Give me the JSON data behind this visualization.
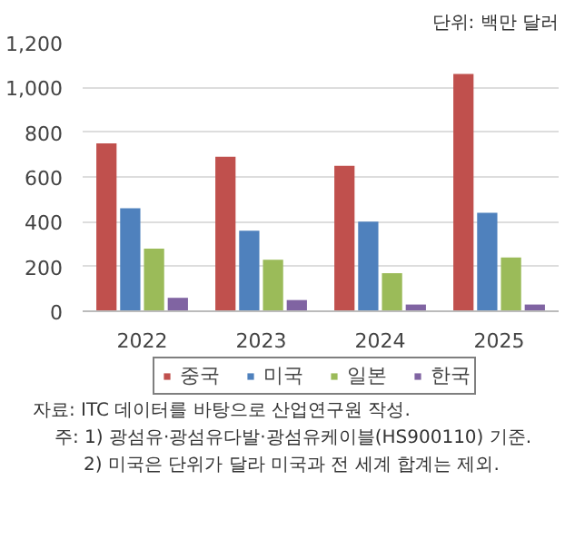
{
  "chart_data": {
    "type": "bar",
    "subtitle": "단위: 백만 달러",
    "categories": [
      "2022",
      "2023",
      "2024",
      "2025"
    ],
    "series": [
      {
        "name": "중국",
        "color": "#c0504d",
        "values": [
          750,
          690,
          650,
          1060
        ]
      },
      {
        "name": "미국",
        "color": "#4f81bd",
        "values": [
          460,
          360,
          400,
          440
        ]
      },
      {
        "name": "일본",
        "color": "#9bbb59",
        "values": [
          280,
          230,
          170,
          240
        ]
      },
      {
        "name": "한국",
        "color": "#8064a2",
        "values": [
          60,
          50,
          30,
          30
        ]
      }
    ],
    "ylim": [
      0,
      1200
    ],
    "yticks": [
      0,
      {
        "value": 200,
        "label": "200"
      },
      {
        "value": 400,
        "label": "400"
      },
      {
        "value": 600,
        "label": "600"
      },
      {
        "value": 800,
        "label": "800"
      },
      {
        "value": 1000,
        "label": "1,000"
      },
      {
        "value": 1200,
        "label": "1,200"
      }
    ],
    "grid": "y",
    "legend": "bottom",
    "annotations": [
      "자료: ITC 데이터를 바탕으로 산업연구원 작성.",
      "주: 1) 광섬유·광섬유다발·광섬유케이블(HS900110) 기준.",
      "2) 미국은 단위가 달라 미국과 전 세계 합계는 제외."
    ]
  }
}
